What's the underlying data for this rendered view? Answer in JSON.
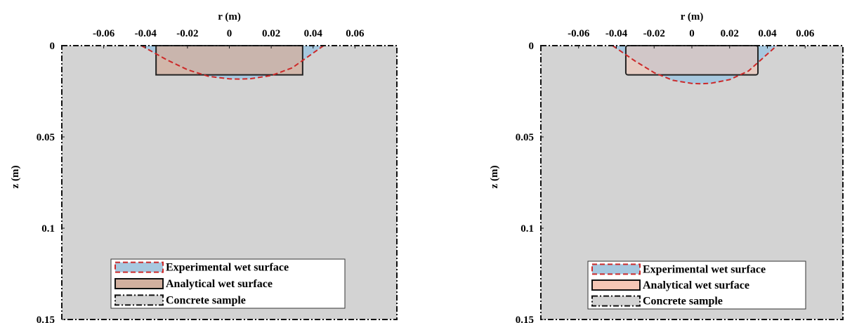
{
  "chart_data": [
    {
      "type": "area",
      "xlabel": "r (m)",
      "ylabel": "z (m)",
      "xlim": [
        -0.08,
        0.08
      ],
      "ylim": [
        0,
        0.15
      ],
      "y_direction": "reversed",
      "x_axis_position": "top",
      "x_ticks": [
        "-0.06",
        "-0.04",
        "-0.02",
        "0",
        "0.02",
        "0.04",
        "0.06"
      ],
      "y_ticks": [
        "0",
        "0.05",
        "0.1",
        "0.15"
      ],
      "legend_position": "bottom-center",
      "series": [
        {
          "name": "Experimental wet surface",
          "kind": "curve",
          "color_fill": "#a7c8df",
          "color_line": "#cc2a2a",
          "r": [
            -0.042,
            -0.03,
            -0.02,
            -0.01,
            0.0,
            0.005,
            0.01,
            0.02,
            0.03,
            0.045
          ],
          "z": [
            0.0,
            0.0077,
            0.0132,
            0.0168,
            0.0182,
            0.0183,
            0.0181,
            0.0164,
            0.0122,
            0.0
          ]
        },
        {
          "name": "Analytical wet surface",
          "kind": "rectangle",
          "color_fill": "#d2b09f",
          "r": [
            -0.035,
            0.035
          ],
          "z": [
            0,
            0.016
          ]
        },
        {
          "name": "Concrete sample",
          "kind": "rectangle",
          "color_fill": "#d3d3d3",
          "r": [
            -0.08,
            0.08
          ],
          "z": [
            0,
            0.15
          ]
        }
      ]
    },
    {
      "type": "area",
      "xlabel": "r (m)",
      "ylabel": "z (m)",
      "xlim": [
        -0.08,
        0.08
      ],
      "ylim": [
        0,
        0.15
      ],
      "y_direction": "reversed",
      "x_axis_position": "top",
      "x_ticks": [
        "-0.06",
        "-0.04",
        "-0.02",
        "0",
        "0.02",
        "0.04",
        "0.06"
      ],
      "y_ticks": [
        "0",
        "0.05",
        "0.1",
        "0.15"
      ],
      "legend_position": "bottom-center",
      "series": [
        {
          "name": "Experimental wet surface",
          "kind": "curve",
          "color_fill": "#a7c8df",
          "color_line": "#cc2a2a",
          "r": [
            -0.042,
            -0.03,
            -0.02,
            -0.01,
            0.0,
            0.005,
            0.01,
            0.02,
            0.03,
            0.045
          ],
          "z": [
            0.0,
            0.0085,
            0.0148,
            0.019,
            0.0207,
            0.0209,
            0.0206,
            0.0186,
            0.0139,
            0.0
          ]
        },
        {
          "name": "Analytical wet surface",
          "kind": "rectangle",
          "color_fill": "#f4c6b5",
          "r": [
            -0.035,
            0.035
          ],
          "z": [
            0,
            0.016
          ]
        },
        {
          "name": "Concrete sample",
          "kind": "rectangle",
          "color_fill": "#d3d3d3",
          "r": [
            -0.08,
            0.08
          ],
          "z": [
            0,
            0.15
          ]
        }
      ]
    }
  ]
}
